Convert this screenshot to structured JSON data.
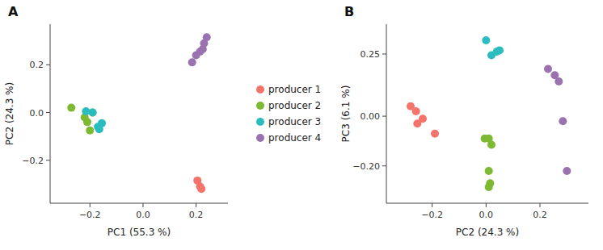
{
  "chart_data": [
    {
      "type": "scatter",
      "title": "A",
      "xlabel": "PC1 (55.3 %)",
      "ylabel": "PC2 (24.3 %)",
      "series": [
        {
          "name": "producer 1",
          "color": "#F4736A",
          "x": [
            0.205,
            0.215,
            0.22
          ],
          "values": [
            -0.285,
            -0.31,
            -0.32
          ]
        },
        {
          "name": "producer 2",
          "color": "#7DB931",
          "x": [
            -0.27,
            -0.22,
            -0.21,
            -0.2,
            -0.19
          ],
          "values": [
            0.02,
            -0.02,
            -0.04,
            -0.075,
            0.0
          ]
        },
        {
          "name": "producer 3",
          "color": "#2BBCBF",
          "x": [
            -0.215,
            -0.19,
            -0.17,
            -0.165,
            -0.155
          ],
          "values": [
            0.005,
            0.0,
            -0.06,
            -0.07,
            -0.045
          ]
        },
        {
          "name": "producer 4",
          "color": "#9B72B0",
          "x": [
            0.185,
            0.2,
            0.215,
            0.225,
            0.23,
            0.24
          ],
          "values": [
            0.21,
            0.24,
            0.255,
            0.265,
            0.29,
            0.315
          ]
        }
      ],
      "xlim": [
        -0.35,
        0.32
      ],
      "ylim": [
        -0.38,
        0.37
      ],
      "xticks": [
        {
          "value": -0.2,
          "label": "−0.2"
        },
        {
          "value": 0.0,
          "label": "0.0"
        },
        {
          "value": 0.2,
          "label": "0.2"
        }
      ],
      "yticks": [
        {
          "value": -0.2,
          "label": "−0.2"
        },
        {
          "value": 0.0,
          "label": "0.0"
        },
        {
          "value": 0.2,
          "label": "0.2"
        }
      ]
    },
    {
      "type": "scatter",
      "title": "B",
      "xlabel": "PC2 (24.3 %)",
      "ylabel": "PC3 (6.1 %)",
      "series": [
        {
          "color": "#F4736A",
          "x": [
            -0.28,
            -0.26,
            -0.255,
            -0.235,
            -0.19
          ],
          "values": [
            0.04,
            0.02,
            -0.03,
            -0.01,
            -0.07
          ]
        },
        {
          "color": "#7DB931",
          "x": [
            -0.005,
            0.01,
            0.02,
            0.01,
            0.015,
            0.01
          ],
          "values": [
            -0.09,
            -0.09,
            -0.115,
            -0.22,
            -0.27,
            -0.285
          ]
        },
        {
          "color": "#2BBCBF",
          "x": [
            0.0,
            0.02,
            0.04,
            0.05
          ],
          "values": [
            0.305,
            0.245,
            0.26,
            0.265
          ]
        },
        {
          "color": "#9B72B0",
          "x": [
            0.23,
            0.255,
            0.27,
            0.285,
            0.3
          ],
          "values": [
            0.19,
            0.165,
            0.14,
            -0.02,
            -0.22
          ]
        }
      ],
      "xlim": [
        -0.37,
        0.38
      ],
      "ylim": [
        -0.35,
        0.37
      ],
      "xticks": [
        {
          "value": -0.2,
          "label": "−0.2"
        },
        {
          "value": 0.0,
          "label": "0.0"
        },
        {
          "value": 0.2,
          "label": "0.2"
        }
      ],
      "yticks": [
        {
          "value": -0.2,
          "label": "−0.20"
        },
        {
          "value": 0.0,
          "label": "0.00"
        },
        {
          "value": 0.25,
          "label": "0.25"
        }
      ]
    }
  ]
}
